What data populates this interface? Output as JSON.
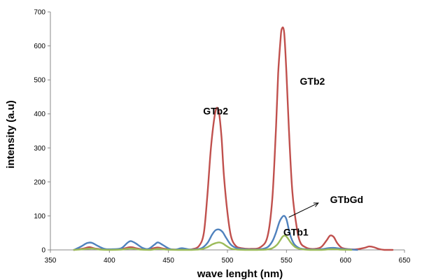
{
  "chart_data": {
    "type": "line",
    "title": "",
    "xlabel": "wave lenght (nm)",
    "ylabel": "intensity (a.u)",
    "xlim": [
      350,
      650
    ],
    "ylim": [
      0,
      700
    ],
    "x_ticks": [
      "350",
      "400",
      "450",
      "500",
      "550",
      "600",
      "650"
    ],
    "y_ticks": [
      "0",
      "100",
      "200",
      "300",
      "400",
      "500",
      "600",
      "700"
    ],
    "grid": false,
    "legend": "none",
    "series": [
      {
        "color": "#c0504d",
        "x": [
          370,
          378,
          383,
          388,
          396,
          405,
          412,
          418,
          424,
          430,
          436,
          441,
          447,
          455,
          462,
          470,
          476,
          480,
          483,
          486,
          489,
          491,
          493,
          495,
          497,
          500,
          503,
          507,
          512,
          520,
          528,
          534,
          538,
          541,
          543,
          545,
          546,
          548,
          550,
          552,
          555,
          559,
          562,
          566,
          570,
          576,
          580,
          584,
          587,
          590,
          593,
          597,
          603,
          610,
          616,
          620,
          624,
          628,
          633,
          640
        ],
        "y": [
          0,
          4,
          8,
          4,
          1,
          1,
          4,
          8,
          4,
          1,
          4,
          7,
          3,
          1,
          1,
          2,
          12,
          50,
          160,
          300,
          390,
          418,
          400,
          330,
          220,
          110,
          40,
          12,
          5,
          3,
          8,
          40,
          150,
          350,
          520,
          620,
          650,
          640,
          520,
          360,
          170,
          60,
          20,
          8,
          3,
          4,
          10,
          28,
          42,
          38,
          20,
          6,
          2,
          2,
          6,
          10,
          8,
          3,
          0,
          0
        ]
      },
      {
        "color": "#4f81bd",
        "x": [
          370,
          376,
          381,
          385,
          390,
          396,
          403,
          410,
          415,
          418,
          422,
          428,
          433,
          438,
          441,
          445,
          451,
          456,
          461,
          465,
          470,
          478,
          483,
          487,
          490,
          493,
          496,
          499,
          503,
          508,
          514,
          520,
          528,
          534,
          538,
          541,
          544,
          546,
          548,
          550,
          552,
          554,
          557,
          561,
          566,
          572,
          580,
          585,
          590,
          595,
          600,
          610
        ],
        "y": [
          0,
          10,
          20,
          21,
          12,
          3,
          2,
          5,
          20,
          26,
          20,
          6,
          3,
          15,
          22,
          15,
          3,
          1,
          5,
          3,
          1,
          5,
          20,
          45,
          58,
          60,
          52,
          35,
          15,
          5,
          2,
          1,
          2,
          8,
          25,
          50,
          82,
          95,
          100,
          90,
          60,
          35,
          15,
          5,
          2,
          1,
          2,
          5,
          6,
          4,
          2,
          0
        ]
      },
      {
        "color": "#9bbb59",
        "x": [
          370,
          378,
          385,
          392,
          400,
          410,
          418,
          426,
          435,
          441,
          448,
          458,
          470,
          478,
          483,
          487,
          490,
          493,
          496,
          499,
          503,
          508,
          515,
          525,
          533,
          538,
          542,
          545,
          547,
          549,
          551,
          554,
          558,
          563,
          570,
          580,
          588,
          595,
          605
        ],
        "y": [
          0,
          2,
          4,
          1,
          0,
          1,
          4,
          1,
          0,
          3,
          1,
          0,
          0,
          2,
          8,
          16,
          20,
          22,
          19,
          12,
          4,
          1,
          0,
          0,
          1,
          5,
          15,
          30,
          40,
          42,
          35,
          20,
          7,
          2,
          0,
          0,
          2,
          1,
          0
        ]
      }
    ],
    "annotations": [
      {
        "text": "GTb2",
        "x": 490,
        "y": 398
      },
      {
        "text": "GTb2",
        "x": 572,
        "y": 486
      },
      {
        "text": "GTbGd",
        "x": 601,
        "y": 138
      },
      {
        "text": "GTb1",
        "x": 558,
        "y": 42
      }
    ],
    "arrow": {
      "from": [
        552,
        96
      ],
      "to": [
        577,
        138
      ]
    }
  }
}
